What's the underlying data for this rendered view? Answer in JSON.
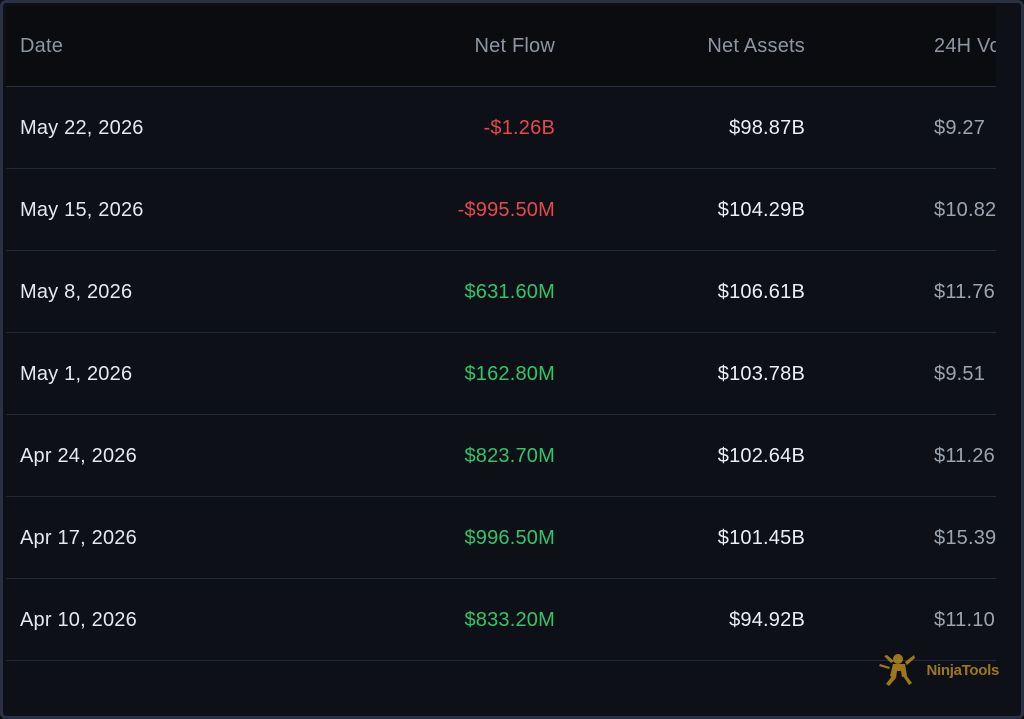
{
  "table": {
    "columns": {
      "date": "Date",
      "net_flow": "Net Flow",
      "net_assets": "Net Assets",
      "volume": "24H Vo"
    },
    "rows": [
      {
        "date": "May 22, 2026",
        "net_flow": "-$1.26B",
        "flow_sign": "neg",
        "net_assets": "$98.87B",
        "volume": "$9.27"
      },
      {
        "date": "May 15, 2026",
        "net_flow": "-$995.50M",
        "flow_sign": "neg",
        "net_assets": "$104.29B",
        "volume": "$10.82"
      },
      {
        "date": "May 8, 2026",
        "net_flow": "$631.60M",
        "flow_sign": "pos",
        "net_assets": "$106.61B",
        "volume": "$11.76"
      },
      {
        "date": "May 1, 2026",
        "net_flow": "$162.80M",
        "flow_sign": "pos",
        "net_assets": "$103.78B",
        "volume": "$9.51"
      },
      {
        "date": "Apr 24, 2026",
        "net_flow": "$823.70M",
        "flow_sign": "pos",
        "net_assets": "$102.64B",
        "volume": "$11.26"
      },
      {
        "date": "Apr 17, 2026",
        "net_flow": "$996.50M",
        "flow_sign": "pos",
        "net_assets": "$101.45B",
        "volume": "$15.39"
      },
      {
        "date": "Apr 10, 2026",
        "net_flow": "$833.20M",
        "flow_sign": "pos",
        "net_assets": "$94.92B",
        "volume": "$11.10"
      }
    ]
  },
  "watermark": {
    "text": "NinjaTools",
    "icon": "ninja-icon"
  },
  "colors": {
    "negative": "#e5484d",
    "positive": "#33c46a",
    "background": "#0d1017",
    "header_background": "#0a0c10",
    "watermark": "#b8891f"
  }
}
